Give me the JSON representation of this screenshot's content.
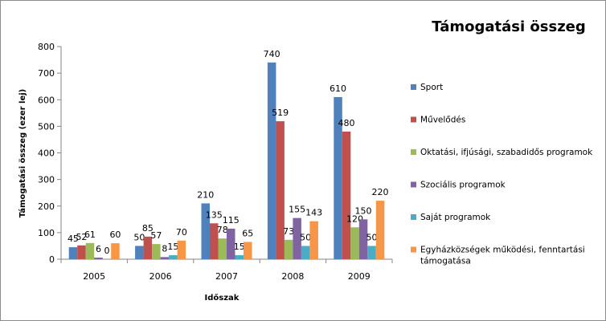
{
  "chart_data": {
    "type": "bar",
    "title": "Támogatási összeg",
    "xlabel": "Időszak",
    "ylabel": "Támogatási összeg (ezer lej)",
    "ylim": [
      0,
      800
    ],
    "yticks": [
      0,
      100,
      200,
      300,
      400,
      500,
      600,
      700,
      800
    ],
    "categories": [
      "2005",
      "2006",
      "2007",
      "2008",
      "2009"
    ],
    "series": [
      {
        "name": "Sport",
        "color": "#4f81bd",
        "values": [
          45,
          50,
          210,
          740,
          610
        ]
      },
      {
        "name": "Művelődés",
        "color": "#c0504d",
        "values": [
          52,
          85,
          135,
          519,
          480
        ]
      },
      {
        "name": "Oktatási, ifjúsági, szabadidős programok",
        "color": "#9bbb59",
        "values": [
          61,
          57,
          78,
          73,
          120
        ]
      },
      {
        "name": "Szociális programok",
        "color": "#8064a2",
        "values": [
          6,
          8,
          115,
          155,
          150
        ]
      },
      {
        "name": "Saját programok",
        "color": "#4bacc6",
        "values": [
          0,
          15,
          15,
          50,
          50
        ]
      },
      {
        "name": "Egyházközségek működési, fenntartási támogatása",
        "color": "#f79646",
        "values": [
          60,
          70,
          65,
          143,
          220
        ]
      }
    ],
    "grid": false,
    "legend": "right"
  }
}
